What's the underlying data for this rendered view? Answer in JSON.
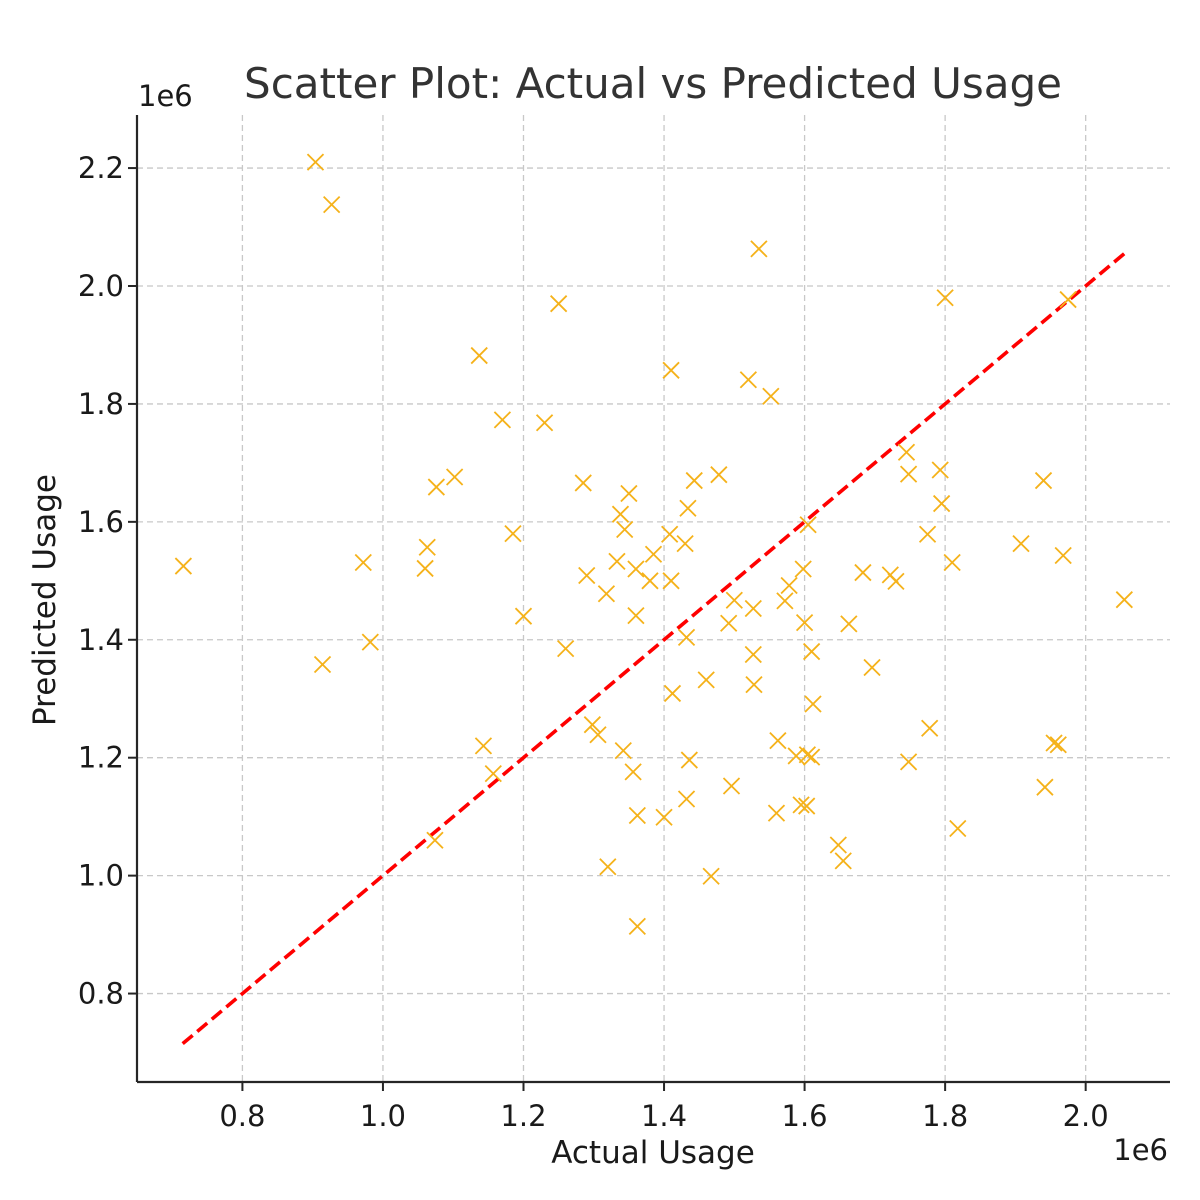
{
  "chart_data": {
    "type": "scatter",
    "title": "Scatter Plot: Actual vs Predicted Usage",
    "xlabel": "Actual Usage",
    "ylabel": "Predicted Usage",
    "x_offset_label": "1e6",
    "y_offset_label": "1e6",
    "xlim": [
      650000,
      2120000
    ],
    "ylim": [
      650000,
      2290000
    ],
    "x_ticks": [
      {
        "value": 800000,
        "label": "0.8"
      },
      {
        "value": 1000000,
        "label": "1.0"
      },
      {
        "value": 1200000,
        "label": "1.2"
      },
      {
        "value": 1400000,
        "label": "1.4"
      },
      {
        "value": 1600000,
        "label": "1.6"
      },
      {
        "value": 1800000,
        "label": "1.8"
      },
      {
        "value": 2000000,
        "label": "2.0"
      }
    ],
    "y_ticks": [
      {
        "value": 800000,
        "label": "0.8"
      },
      {
        "value": 1000000,
        "label": "1.0"
      },
      {
        "value": 1200000,
        "label": "1.2"
      },
      {
        "value": 1400000,
        "label": "1.4"
      },
      {
        "value": 1600000,
        "label": "1.6"
      },
      {
        "value": 1800000,
        "label": "1.8"
      },
      {
        "value": 2000000,
        "label": "2.0"
      },
      {
        "value": 2200000,
        "label": "2.2"
      }
    ],
    "grid": true,
    "marker": "x",
    "point_color": "#f5b21a",
    "reference_line": {
      "style": "dashed",
      "color": "#ff0000",
      "from": [
        715000,
        715000
      ],
      "to": [
        2055000,
        2055000
      ]
    },
    "points": [
      [
        904000,
        2210000
      ],
      [
        927000,
        2138000
      ],
      [
        1535000,
        2063000
      ],
      [
        1250000,
        1970000
      ],
      [
        1800000,
        1980000
      ],
      [
        1975000,
        1977000
      ],
      [
        1137000,
        1882000
      ],
      [
        1410000,
        1857000
      ],
      [
        1520000,
        1841000
      ],
      [
        1552000,
        1813000
      ],
      [
        1170000,
        1773000
      ],
      [
        1230000,
        1768000
      ],
      [
        1745000,
        1718000
      ],
      [
        1102000,
        1676000
      ],
      [
        1076000,
        1659000
      ],
      [
        1285000,
        1666000
      ],
      [
        1443000,
        1670000
      ],
      [
        1478000,
        1680000
      ],
      [
        1748000,
        1681000
      ],
      [
        1793000,
        1688000
      ],
      [
        1940000,
        1670000
      ],
      [
        1350000,
        1648000
      ],
      [
        1434000,
        1623000
      ],
      [
        1795000,
        1631000
      ],
      [
        1338000,
        1613000
      ],
      [
        1344000,
        1587000
      ],
      [
        1408000,
        1579000
      ],
      [
        1605000,
        1595000
      ],
      [
        1775000,
        1579000
      ],
      [
        1063000,
        1557000
      ],
      [
        1185000,
        1580000
      ],
      [
        1430000,
        1563000
      ],
      [
        1908000,
        1563000
      ],
      [
        716000,
        1525000
      ],
      [
        972000,
        1531000
      ],
      [
        1060000,
        1521000
      ],
      [
        1333000,
        1533000
      ],
      [
        1385000,
        1545000
      ],
      [
        1360000,
        1520000
      ],
      [
        1968000,
        1543000
      ],
      [
        1290000,
        1509000
      ],
      [
        1380000,
        1500000
      ],
      [
        1410000,
        1500000
      ],
      [
        1598000,
        1520000
      ],
      [
        1683000,
        1514000
      ],
      [
        1722000,
        1510000
      ],
      [
        1730000,
        1499000
      ],
      [
        1810000,
        1531000
      ],
      [
        1578000,
        1492000
      ],
      [
        1572000,
        1466000
      ],
      [
        1318000,
        1478000
      ],
      [
        1500000,
        1467000
      ],
      [
        1200000,
        1440000
      ],
      [
        1360000,
        1441000
      ],
      [
        1527000,
        1453000
      ],
      [
        1492000,
        1428000
      ],
      [
        1600000,
        1429000
      ],
      [
        1663000,
        1427000
      ],
      [
        2055000,
        1468000
      ],
      [
        982000,
        1396000
      ],
      [
        1260000,
        1385000
      ],
      [
        1432000,
        1404000
      ],
      [
        1527000,
        1375000
      ],
      [
        1610000,
        1380000
      ],
      [
        1696000,
        1353000
      ],
      [
        914000,
        1358000
      ],
      [
        1460000,
        1332000
      ],
      [
        1528000,
        1324000
      ],
      [
        1412000,
        1309000
      ],
      [
        1612000,
        1291000
      ],
      [
        1298000,
        1256000
      ],
      [
        1306000,
        1239000
      ],
      [
        1562000,
        1229000
      ],
      [
        1778000,
        1250000
      ],
      [
        1143000,
        1220000
      ],
      [
        1342000,
        1212000
      ],
      [
        1436000,
        1196000
      ],
      [
        1588000,
        1203000
      ],
      [
        1604000,
        1205000
      ],
      [
        1610000,
        1201000
      ],
      [
        1748000,
        1193000
      ],
      [
        1955000,
        1225000
      ],
      [
        1961000,
        1222000
      ],
      [
        1157000,
        1173000
      ],
      [
        1356000,
        1176000
      ],
      [
        1496000,
        1152000
      ],
      [
        1432000,
        1130000
      ],
      [
        1595000,
        1120000
      ],
      [
        1603000,
        1118000
      ],
      [
        1942000,
        1150000
      ],
      [
        1362000,
        1102000
      ],
      [
        1400000,
        1099000
      ],
      [
        1560000,
        1106000
      ],
      [
        1818000,
        1080000
      ],
      [
        1074000,
        1060000
      ],
      [
        1648000,
        1052000
      ],
      [
        1655000,
        1025000
      ],
      [
        1320000,
        1015000
      ],
      [
        1467000,
        999000
      ],
      [
        1362000,
        914000
      ]
    ]
  }
}
